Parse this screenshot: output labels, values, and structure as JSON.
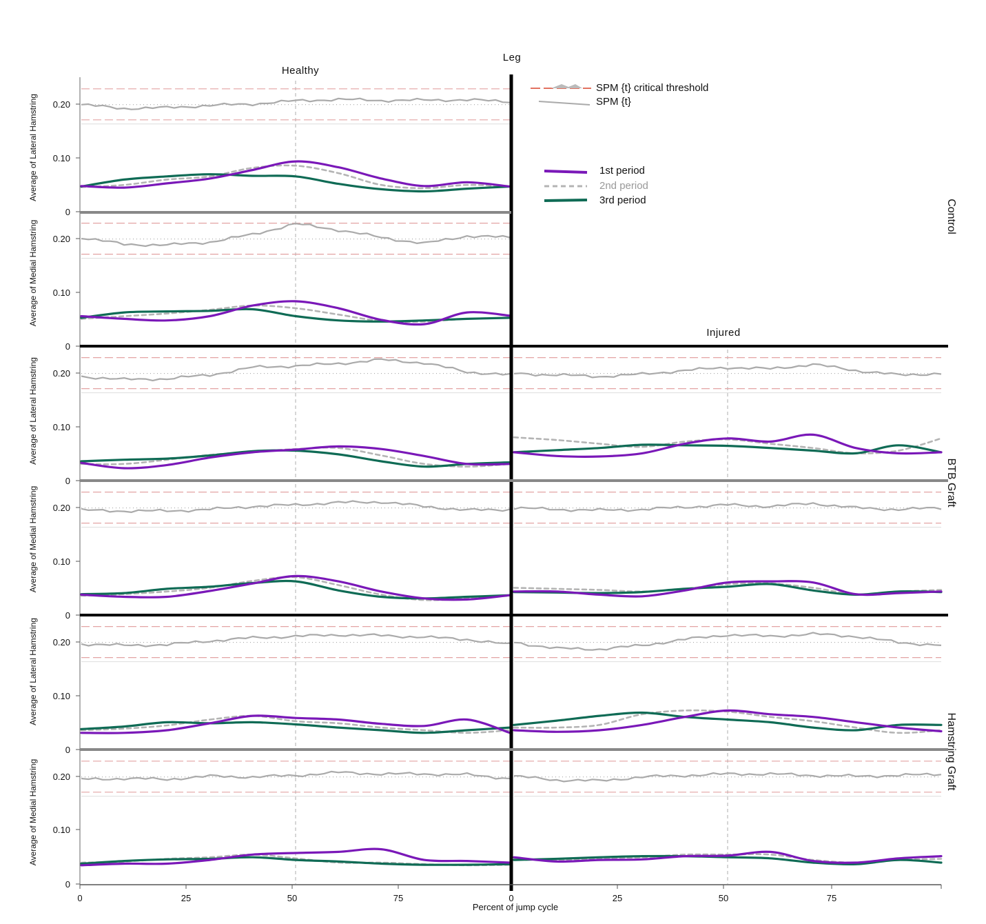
{
  "chart_data": {
    "type": "line",
    "title": "Leg",
    "column_labels": {
      "healthy": "Healthy",
      "injured": "Injured"
    },
    "group_labels": [
      "Control",
      "BTB Graft",
      "Hamstring Graft"
    ],
    "ylabels": {
      "lateral": "Average of Lateral Hamstring",
      "medial": "Average of Medial Hamstring"
    },
    "xlabel": "Percent of jump cycle",
    "x_ticks": [
      "0",
      "25",
      "50",
      "75",
      "0",
      "25",
      "50",
      "75"
    ],
    "y_ticks": [
      "0",
      "0.10",
      "0.20"
    ],
    "ylim": [
      0,
      0.25
    ],
    "xlim": [
      0,
      100
    ],
    "legend_spm": {
      "threshold": "SPM {t} critical threshold",
      "spm": "SPM {t}"
    },
    "series_names": [
      "1st period",
      "2nd period",
      "3rd period"
    ],
    "colors": {
      "p1": "#7a18b8",
      "p2": "#b4b4b4",
      "p3": "#0f6b55",
      "spm": "#aaaaaa",
      "threshold": "#e3a3a3"
    },
    "x": [
      0,
      10,
      20,
      30,
      40,
      50,
      60,
      70,
      80,
      90,
      100
    ],
    "panels": [
      {
        "group": "Control",
        "muscle": "Lateral Hamstring",
        "leg": "Healthy",
        "series": [
          {
            "name": "1st period",
            "values": [
              0.048,
              0.045,
              0.053,
              0.062,
              0.078,
              0.094,
              0.083,
              0.062,
              0.048,
              0.055,
              0.047
            ]
          },
          {
            "name": "2nd period",
            "values": [
              0.046,
              0.05,
              0.06,
              0.066,
              0.082,
              0.086,
              0.072,
              0.05,
              0.044,
              0.05,
              0.047
            ]
          },
          {
            "name": "3rd period",
            "values": [
              0.047,
              0.06,
              0.066,
              0.07,
              0.067,
              0.066,
              0.052,
              0.042,
              0.038,
              0.043,
              0.047
            ]
          }
        ],
        "spm": [
          0.0,
          -0.25,
          -0.2,
          -0.05,
          0.05,
          0.25,
          0.35,
          0.28,
          0.3,
          0.32,
          0.2
        ]
      },
      {
        "group": "Control",
        "muscle": "Medial Hamstring",
        "leg": "Healthy",
        "series": [
          {
            "name": "1st period",
            "values": [
              0.055,
              0.05,
              0.047,
              0.055,
              0.075,
              0.083,
              0.07,
              0.048,
              0.04,
              0.062,
              0.056
            ]
          },
          {
            "name": "2nd period",
            "values": [
              0.05,
              0.055,
              0.06,
              0.067,
              0.075,
              0.07,
              0.058,
              0.046,
              0.045,
              0.05,
              0.052
            ]
          },
          {
            "name": "3rd period",
            "values": [
              0.052,
              0.062,
              0.064,
              0.065,
              0.068,
              0.055,
              0.047,
              0.045,
              0.047,
              0.05,
              0.052
            ]
          }
        ],
        "spm": [
          0.1,
          -0.35,
          -0.4,
          -0.2,
          0.3,
          1.0,
          0.6,
          0.1,
          -0.3,
          0.2,
          0.1
        ]
      },
      {
        "group": "BTB Graft",
        "muscle": "Lateral Hamstring",
        "leg": "Healthy",
        "series": [
          {
            "name": "1st period",
            "values": [
              0.032,
              0.022,
              0.028,
              0.042,
              0.052,
              0.057,
              0.063,
              0.058,
              0.045,
              0.03,
              0.03
            ]
          },
          {
            "name": "2nd period",
            "values": [
              0.03,
              0.03,
              0.038,
              0.047,
              0.053,
              0.058,
              0.06,
              0.046,
              0.03,
              0.025,
              0.03
            ]
          },
          {
            "name": "3rd period",
            "values": [
              0.035,
              0.038,
              0.04,
              0.046,
              0.054,
              0.055,
              0.048,
              0.035,
              0.025,
              0.03,
              0.033
            ]
          }
        ],
        "spm": [
          -0.2,
          -0.4,
          -0.35,
          -0.1,
          0.4,
          0.5,
          0.65,
          0.9,
          0.7,
          0.1,
          -0.1
        ]
      },
      {
        "group": "BTB Graft",
        "muscle": "Lateral Hamstring",
        "leg": "Injured",
        "series": [
          {
            "name": "1st period",
            "values": [
              0.052,
              0.045,
              0.044,
              0.05,
              0.068,
              0.078,
              0.072,
              0.085,
              0.06,
              0.05,
              0.052
            ]
          },
          {
            "name": "2nd period",
            "values": [
              0.08,
              0.075,
              0.068,
              0.062,
              0.072,
              0.076,
              0.068,
              0.06,
              0.05,
              0.055,
              0.078
            ]
          },
          {
            "name": "3rd period",
            "values": [
              0.052,
              0.056,
              0.06,
              0.066,
              0.065,
              0.064,
              0.06,
              0.055,
              0.05,
              0.065,
              0.052
            ]
          }
        ],
        "spm": [
          0.0,
          -0.1,
          -0.2,
          -0.05,
          0.2,
          0.4,
          0.3,
          0.6,
          0.2,
          -0.1,
          0.0
        ]
      },
      {
        "group": "BTB Graft",
        "muscle": "Medial Hamstring",
        "leg": "Healthy",
        "series": [
          {
            "name": "1st period",
            "values": [
              0.037,
              0.033,
              0.033,
              0.044,
              0.058,
              0.072,
              0.062,
              0.043,
              0.03,
              0.028,
              0.036
            ]
          },
          {
            "name": "2nd period",
            "values": [
              0.035,
              0.038,
              0.043,
              0.05,
              0.063,
              0.07,
              0.055,
              0.037,
              0.027,
              0.03,
              0.035
            ]
          },
          {
            "name": "3rd period",
            "values": [
              0.038,
              0.04,
              0.048,
              0.052,
              0.059,
              0.062,
              0.045,
              0.033,
              0.03,
              0.033,
              0.036
            ]
          }
        ],
        "spm": [
          -0.15,
          -0.2,
          -0.2,
          -0.1,
          0.1,
          0.2,
          0.35,
          0.4,
          0.1,
          -0.15,
          -0.1
        ]
      },
      {
        "group": "BTB Graft",
        "muscle": "Medial Hamstring",
        "leg": "Injured",
        "series": [
          {
            "name": "1st period",
            "values": [
              0.043,
              0.043,
              0.037,
              0.034,
              0.045,
              0.06,
              0.062,
              0.06,
              0.038,
              0.04,
              0.043
            ]
          },
          {
            "name": "2nd period",
            "values": [
              0.05,
              0.048,
              0.046,
              0.043,
              0.048,
              0.057,
              0.058,
              0.05,
              0.038,
              0.043,
              0.046
            ]
          },
          {
            "name": "3rd period",
            "values": [
              0.042,
              0.041,
              0.04,
              0.042,
              0.048,
              0.052,
              0.057,
              0.045,
              0.037,
              0.043,
              0.042
            ]
          }
        ],
        "spm": [
          0.0,
          -0.1,
          -0.15,
          -0.1,
          0.05,
          0.2,
          0.1,
          0.3,
          0.0,
          -0.1,
          0.0
        ]
      },
      {
        "group": "Hamstring Graft",
        "muscle": "Lateral Hamstring",
        "leg": "Healthy",
        "series": [
          {
            "name": "1st period",
            "values": [
              0.03,
              0.03,
              0.035,
              0.048,
              0.062,
              0.058,
              0.055,
              0.047,
              0.043,
              0.055,
              0.03
            ]
          },
          {
            "name": "2nd period",
            "values": [
              0.035,
              0.038,
              0.044,
              0.055,
              0.062,
              0.052,
              0.048,
              0.04,
              0.035,
              0.03,
              0.035
            ]
          },
          {
            "name": "3rd period",
            "values": [
              0.037,
              0.042,
              0.05,
              0.048,
              0.05,
              0.046,
              0.04,
              0.035,
              0.03,
              0.035,
              0.04
            ]
          }
        ],
        "spm": [
          -0.1,
          -0.2,
          -0.15,
          0.1,
          0.3,
          0.4,
          0.5,
          0.45,
          0.35,
          0.2,
          -0.15
        ]
      },
      {
        "group": "Hamstring Graft",
        "muscle": "Lateral Hamstring",
        "leg": "Injured",
        "series": [
          {
            "name": "1st period",
            "values": [
              0.035,
              0.032,
              0.035,
              0.045,
              0.06,
              0.072,
              0.065,
              0.06,
              0.05,
              0.04,
              0.033
            ]
          },
          {
            "name": "2nd period",
            "values": [
              0.04,
              0.04,
              0.045,
              0.065,
              0.072,
              0.07,
              0.06,
              0.052,
              0.04,
              0.03,
              0.035
            ]
          },
          {
            "name": "3rd period",
            "values": [
              0.045,
              0.053,
              0.062,
              0.068,
              0.06,
              0.055,
              0.05,
              0.04,
              0.035,
              0.045,
              0.045
            ]
          }
        ],
        "spm": [
          0.0,
          -0.4,
          -0.45,
          -0.2,
          0.2,
          0.5,
          0.4,
          0.55,
          0.4,
          0.0,
          -0.2
        ]
      },
      {
        "group": "Hamstring Graft",
        "muscle": "Medial Hamstring",
        "leg": "Healthy",
        "series": [
          {
            "name": "1st period",
            "values": [
              0.035,
              0.038,
              0.038,
              0.045,
              0.055,
              0.058,
              0.06,
              0.065,
              0.045,
              0.043,
              0.04
            ]
          },
          {
            "name": "2nd period",
            "values": [
              0.04,
              0.042,
              0.047,
              0.05,
              0.055,
              0.048,
              0.04,
              0.04,
              0.037,
              0.035,
              0.036
            ]
          },
          {
            "name": "3rd period",
            "values": [
              0.038,
              0.043,
              0.046,
              0.047,
              0.05,
              0.045,
              0.042,
              0.038,
              0.036,
              0.036,
              0.037
            ]
          }
        ],
        "spm": [
          -0.15,
          -0.1,
          -0.15,
          0.05,
          0.0,
          0.1,
          0.3,
          0.2,
          0.2,
          0.15,
          -0.1
        ]
      },
      {
        "group": "Hamstring Graft",
        "muscle": "Medial Hamstring",
        "leg": "Injured",
        "series": [
          {
            "name": "1st period",
            "values": [
              0.05,
              0.042,
              0.045,
              0.046,
              0.052,
              0.053,
              0.06,
              0.043,
              0.04,
              0.048,
              0.052
            ]
          },
          {
            "name": "2nd period",
            "values": [
              0.047,
              0.045,
              0.048,
              0.05,
              0.055,
              0.055,
              0.055,
              0.045,
              0.04,
              0.045,
              0.047
            ]
          },
          {
            "name": "3rd period",
            "values": [
              0.045,
              0.047,
              0.05,
              0.052,
              0.052,
              0.05,
              0.048,
              0.04,
              0.037,
              0.045,
              0.04
            ]
          }
        ],
        "spm": [
          0.05,
          -0.2,
          -0.25,
          0.0,
          0.1,
          0.2,
          0.2,
          0.1,
          0.05,
          0.1,
          0.2
        ]
      }
    ]
  }
}
